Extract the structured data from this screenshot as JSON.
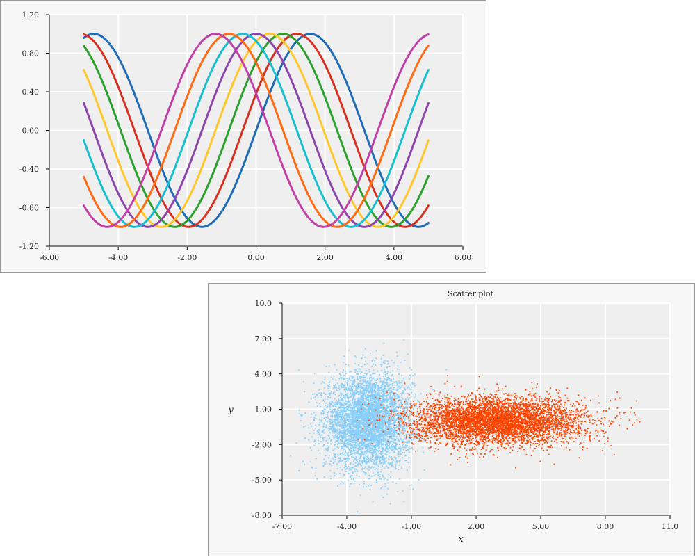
{
  "chart_data": [
    {
      "type": "line",
      "title": "",
      "xlabel": "",
      "ylabel": "",
      "xlim": [
        -6,
        6
      ],
      "ylim": [
        -1.2,
        1.2
      ],
      "xticks": [
        "-6.00",
        "-4.00",
        "-2.00",
        "0.00",
        "2.00",
        "4.00",
        "6.00"
      ],
      "yticks": [
        "1.20",
        "0.80",
        "0.40",
        "-0.00",
        "-0.40",
        "-0.80",
        "-1.20"
      ],
      "grid": true,
      "function": "sin(x + phase)",
      "x_range": [
        -5,
        5
      ],
      "series": [
        {
          "phase": 0.0,
          "color": "#1f6bb5"
        },
        {
          "phase": 0.39,
          "color": "#d7301f"
        },
        {
          "phase": 0.79,
          "color": "#2ca02c"
        },
        {
          "phase": 1.18,
          "color": "#ffc72c"
        },
        {
          "phase": 1.57,
          "color": "#8e44ad"
        },
        {
          "phase": 1.96,
          "color": "#17becf"
        },
        {
          "phase": 2.36,
          "color": "#ff6a13"
        },
        {
          "phase": 2.75,
          "color": "#c23fa8"
        }
      ]
    },
    {
      "type": "scatter",
      "title": "Scatter plot",
      "xlabel": "x",
      "ylabel": "y",
      "xlim": [
        -7,
        11
      ],
      "ylim": [
        -8,
        10
      ],
      "xticks": [
        "-7.00",
        "-4.00",
        "-1.00",
        "2.00",
        "5.00",
        "8.00",
        "11.0"
      ],
      "yticks": [
        "10.0",
        "7.00",
        "4.00",
        "1.00",
        "-2.00",
        "-5.00",
        "-8.00"
      ],
      "grid": true,
      "series": [
        {
          "color": "#87cefa",
          "center": [
            -3,
            0
          ],
          "spread": [
            1.0,
            2.0
          ]
        },
        {
          "color": "#ff4500",
          "center": [
            3,
            0
          ],
          "spread": [
            2.0,
            1.0
          ]
        }
      ]
    }
  ]
}
